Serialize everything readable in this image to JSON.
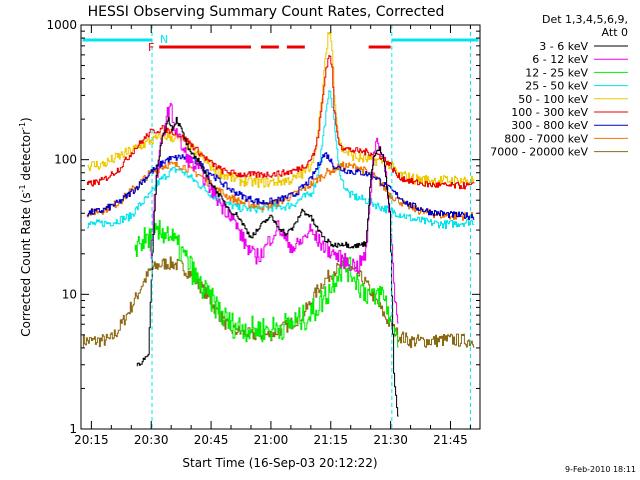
{
  "chart_data": {
    "type": "line",
    "title": "HESSI Observing Summary Count Rates, Corrected",
    "xlabel": "Start Time (16-Sep-03 20:12:22)",
    "ylabel_main": "Corrected Count Rate (s",
    "ylabel_sup1": "-1",
    "ylabel_mid": " detector",
    "ylabel_sup2": "-1",
    "ylabel_end": ")",
    "y_scale": "log",
    "ylim": [
      1,
      1000
    ],
    "xlim_minutes": [
      12.4,
      112.4
    ],
    "x_ticks": [
      {
        "label": "20:15",
        "min": 15
      },
      {
        "label": "20:30",
        "min": 30
      },
      {
        "label": "20:45",
        "min": 45
      },
      {
        "label": "21:00",
        "min": 60
      },
      {
        "label": "21:15",
        "min": 75
      },
      {
        "label": "21:30",
        "min": 90
      },
      {
        "label": "21:45",
        "min": 105
      }
    ],
    "y_ticks": [
      {
        "label": "1",
        "value": 1
      },
      {
        "label": "10",
        "value": 10
      },
      {
        "label": "100",
        "value": 100
      },
      {
        "label": "1000",
        "value": 1000
      }
    ],
    "legend_header": [
      "Det 1,3,4,5,6,9,",
      "Att 0"
    ],
    "timestamp": "9-Feb-2010 18:11",
    "flags": {
      "N_label": "N",
      "F_label": "F",
      "night_color": "#00e5ee",
      "flare_color": "#ee0000",
      "night_segments": [
        [
          12.8,
          30.2
        ],
        [
          90.3,
          112.0
        ]
      ],
      "flare_segments": [
        [
          32.0,
          55.0
        ],
        [
          57.5,
          62.0
        ],
        [
          64.0,
          68.5
        ],
        [
          84.5,
          90.0
        ]
      ],
      "night_boundaries": [
        30.2,
        90.3,
        110.0
      ]
    },
    "series": [
      {
        "name": "3 - 6 keV",
        "color": "#000000",
        "x": [
          26.5,
          28,
          29.5,
          30.5,
          31.5,
          33,
          34.5,
          35.5,
          36.5,
          38,
          40,
          42,
          44,
          46,
          48,
          50,
          52,
          54,
          55,
          56,
          58,
          60,
          62,
          64,
          66,
          68,
          70,
          72,
          74,
          76,
          78,
          80,
          82,
          84,
          85,
          86,
          87.5,
          88.5,
          90,
          91,
          92
        ],
        "y": [
          3,
          3.2,
          3.5,
          20,
          80,
          150,
          200,
          170,
          200,
          160,
          110,
          100,
          75,
          62,
          50,
          42,
          38,
          30,
          27,
          28,
          33,
          38,
          32,
          28,
          32,
          42,
          38,
          30,
          25,
          23,
          24,
          23,
          23,
          24,
          60,
          110,
          120,
          100,
          40,
          2.5,
          1.2
        ]
      },
      {
        "name": "6 - 12 keV",
        "color": "#ee00ee",
        "x": [
          30,
          31,
          32.5,
          34,
          35,
          36,
          37,
          38,
          40,
          42,
          44,
          46,
          48,
          50,
          52,
          54,
          56,
          58,
          60,
          62,
          64,
          66,
          68,
          70,
          72,
          74,
          76,
          78,
          80,
          82,
          84,
          85,
          86,
          87,
          88.5,
          90,
          91,
          92
        ],
        "y": [
          18,
          50,
          120,
          210,
          240,
          180,
          150,
          120,
          95,
          85,
          70,
          55,
          45,
          40,
          30,
          23,
          19,
          20,
          26,
          32,
          25,
          22,
          25,
          30,
          25,
          22,
          20,
          18,
          17,
          16,
          20,
          50,
          120,
          145,
          95,
          40,
          12,
          6
        ]
      },
      {
        "name": "12 - 25 keV",
        "color": "#00ee00",
        "x": [
          26,
          28,
          30,
          32,
          34,
          35,
          36,
          38,
          40,
          42,
          44,
          46,
          48,
          50,
          55,
          60,
          65,
          70,
          73,
          75,
          77,
          79,
          81,
          83,
          85,
          86,
          87,
          88,
          89,
          90,
          92
        ],
        "y": [
          23,
          25,
          26,
          28,
          30,
          27,
          24,
          20,
          16,
          12,
          10,
          8.5,
          7,
          6,
          5.5,
          5.5,
          6,
          7,
          9,
          11,
          15,
          16,
          14,
          11,
          10,
          9,
          10,
          10,
          9,
          6.5,
          5
        ]
      },
      {
        "name": "25 - 50 keV",
        "color": "#00e5ee",
        "x": [
          14,
          20,
          25,
          27,
          30,
          32,
          35,
          37,
          39,
          42,
          45,
          48,
          52,
          56,
          60,
          64,
          66,
          68,
          70,
          71,
          72,
          73,
          74,
          75,
          76,
          77,
          78,
          79,
          80,
          82,
          84,
          86,
          88,
          90,
          92,
          96,
          100,
          104,
          108,
          111
        ],
        "y": [
          33,
          34,
          38,
          45,
          55,
          68,
          82,
          85,
          78,
          66,
          56,
          48,
          44,
          43,
          44,
          45,
          47,
          52,
          55,
          62,
          80,
          130,
          220,
          340,
          200,
          95,
          70,
          60,
          55,
          52,
          50,
          47,
          44,
          42,
          40,
          36,
          34,
          33,
          34,
          35
        ]
      },
      {
        "name": "50 - 100 keV",
        "color": "#eec900",
        "x": [
          14,
          18,
          22,
          26,
          30,
          34,
          38,
          42,
          45,
          48,
          52,
          56,
          60,
          64,
          66,
          68,
          70,
          71,
          72,
          73,
          74,
          74.5,
          75,
          75.5,
          76,
          77,
          78,
          80,
          82,
          85,
          88,
          90,
          92,
          96,
          100,
          105,
          111
        ],
        "y": [
          90,
          92,
          105,
          120,
          138,
          150,
          140,
          110,
          90,
          78,
          70,
          68,
          68,
          70,
          72,
          78,
          90,
          110,
          160,
          300,
          620,
          860,
          880,
          650,
          330,
          150,
          120,
          110,
          103,
          100,
          98,
          92,
          78,
          72,
          70,
          70,
          70
        ]
      },
      {
        "name": "100 - 300 keV",
        "color": "#ee0000",
        "x": [
          14,
          18,
          22,
          26,
          30,
          33,
          36,
          39,
          42,
          45,
          48,
          52,
          56,
          60,
          64,
          67,
          69,
          71,
          72,
          73,
          74,
          74.5,
          75,
          75.5,
          76,
          77,
          78,
          80,
          83,
          86,
          88,
          90,
          92,
          96,
          100,
          105,
          111
        ],
        "y": [
          65,
          70,
          85,
          120,
          160,
          170,
          160,
          140,
          115,
          95,
          83,
          78,
          77,
          78,
          80,
          85,
          92,
          110,
          150,
          260,
          480,
          560,
          600,
          470,
          240,
          140,
          125,
          118,
          115,
          112,
          105,
          92,
          75,
          68,
          65,
          64,
          64
        ]
      },
      {
        "name": "300 - 800 keV",
        "color": "#0000cc",
        "x": [
          14,
          18,
          22,
          26,
          30,
          34,
          38,
          42,
          46,
          50,
          54,
          58,
          62,
          66,
          68,
          70,
          72,
          73,
          74,
          75,
          76,
          78,
          80,
          83,
          86,
          90,
          95,
          100,
          105,
          111
        ],
        "y": [
          40,
          42,
          48,
          60,
          80,
          100,
          105,
          95,
          75,
          60,
          52,
          48,
          50,
          55,
          62,
          70,
          90,
          105,
          110,
          100,
          90,
          85,
          82,
          80,
          76,
          60,
          46,
          41,
          39,
          38
        ]
      },
      {
        "name": "800 - 7000 keV",
        "color": "#ee7600",
        "x": [
          14,
          18,
          22,
          26,
          30,
          34,
          38,
          42,
          46,
          50,
          54,
          58,
          62,
          66,
          70,
          74,
          78,
          82,
          86,
          88,
          90,
          94,
          98,
          102,
          106,
          111
        ],
        "y": [
          40,
          42,
          48,
          62,
          80,
          92,
          90,
          78,
          62,
          52,
          47,
          45,
          48,
          55,
          65,
          80,
          90,
          88,
          75,
          65,
          55,
          46,
          41,
          39,
          38,
          38
        ]
      },
      {
        "name": "7000 - 20000 keV",
        "color": "#8b6914",
        "x": [
          13,
          16,
          20,
          22,
          24,
          26,
          28,
          30,
          32,
          34,
          36,
          38,
          40,
          42,
          44,
          46,
          48,
          50,
          55,
          60,
          65,
          68,
          70,
          72,
          74,
          76,
          78,
          80,
          82,
          84,
          86,
          88,
          90,
          92,
          95,
          100,
          105,
          111
        ],
        "y": [
          4.5,
          4.5,
          4.6,
          5.5,
          7,
          9,
          12,
          15,
          16.5,
          17,
          16.8,
          16,
          14,
          12,
          10,
          8,
          6.5,
          5.5,
          5,
          5,
          6,
          7,
          8.5,
          11,
          13,
          15,
          16,
          15.5,
          14,
          12,
          9.5,
          7.5,
          6,
          5,
          4.5,
          4.5,
          4.6,
          4.5
        ]
      }
    ]
  }
}
